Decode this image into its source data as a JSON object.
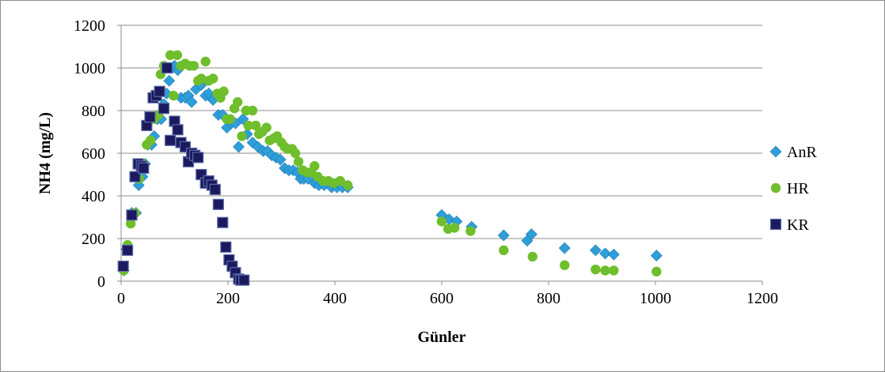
{
  "chart_data": {
    "type": "scatter",
    "title": "",
    "xlabel": "Günler",
    "ylabel": "NH4 (mg/L)",
    "xlim": [
      0,
      1200
    ],
    "ylim": [
      0,
      1200
    ],
    "x_ticks": [
      0,
      200,
      400,
      600,
      800,
      1000,
      1200
    ],
    "y_ticks": [
      0,
      200,
      400,
      600,
      800,
      1000,
      1200
    ],
    "grid": "horizontal",
    "legend_position": "right",
    "series": [
      {
        "name": "AnR",
        "marker": "diamond",
        "color": "#2e9fd9",
        "points": [
          [
            5,
            50
          ],
          [
            10,
            150
          ],
          [
            20,
            320
          ],
          [
            28,
            320
          ],
          [
            33,
            450
          ],
          [
            40,
            490
          ],
          [
            45,
            550
          ],
          [
            50,
            640
          ],
          [
            57,
            640
          ],
          [
            62,
            680
          ],
          [
            68,
            760
          ],
          [
            75,
            760
          ],
          [
            80,
            830
          ],
          [
            85,
            880
          ],
          [
            90,
            940
          ],
          [
            96,
            1000
          ],
          [
            100,
            1010
          ],
          [
            106,
            990
          ],
          [
            112,
            860
          ],
          [
            120,
            860
          ],
          [
            126,
            870
          ],
          [
            132,
            840
          ],
          [
            140,
            900
          ],
          [
            150,
            920
          ],
          [
            158,
            870
          ],
          [
            164,
            880
          ],
          [
            172,
            850
          ],
          [
            182,
            780
          ],
          [
            190,
            780
          ],
          [
            198,
            720
          ],
          [
            206,
            740
          ],
          [
            214,
            740
          ],
          [
            220,
            630
          ],
          [
            228,
            760
          ],
          [
            236,
            690
          ],
          [
            246,
            650
          ],
          [
            256,
            630
          ],
          [
            266,
            610
          ],
          [
            274,
            610
          ],
          [
            282,
            590
          ],
          [
            290,
            580
          ],
          [
            298,
            570
          ],
          [
            306,
            530
          ],
          [
            314,
            520
          ],
          [
            322,
            520
          ],
          [
            330,
            510
          ],
          [
            336,
            480
          ],
          [
            342,
            480
          ],
          [
            350,
            480
          ],
          [
            362,
            460
          ],
          [
            370,
            450
          ],
          [
            380,
            450
          ],
          [
            394,
            440
          ],
          [
            404,
            440
          ],
          [
            414,
            440
          ],
          [
            424,
            440
          ],
          [
            600,
            310
          ],
          [
            614,
            290
          ],
          [
            628,
            280
          ],
          [
            656,
            255
          ],
          [
            716,
            215
          ],
          [
            760,
            190
          ],
          [
            768,
            220
          ],
          [
            830,
            155
          ],
          [
            888,
            145
          ],
          [
            906,
            130
          ],
          [
            922,
            125
          ],
          [
            1002,
            120
          ]
        ]
      },
      {
        "name": "HR",
        "marker": "circle",
        "color": "#6fbe2c",
        "points": [
          [
            5,
            50
          ],
          [
            12,
            170
          ],
          [
            18,
            270
          ],
          [
            26,
            320
          ],
          [
            34,
            480
          ],
          [
            42,
            550
          ],
          [
            48,
            640
          ],
          [
            55,
            660
          ],
          [
            62,
            760
          ],
          [
            70,
            780
          ],
          [
            74,
            970
          ],
          [
            80,
            1010
          ],
          [
            86,
            1000
          ],
          [
            92,
            1060
          ],
          [
            98,
            870
          ],
          [
            105,
            1060
          ],
          [
            112,
            1010
          ],
          [
            120,
            1020
          ],
          [
            128,
            1010
          ],
          [
            136,
            1010
          ],
          [
            144,
            940
          ],
          [
            150,
            950
          ],
          [
            158,
            1030
          ],
          [
            164,
            940
          ],
          [
            172,
            950
          ],
          [
            180,
            880
          ],
          [
            186,
            860
          ],
          [
            192,
            890
          ],
          [
            198,
            760
          ],
          [
            204,
            760
          ],
          [
            212,
            810
          ],
          [
            218,
            840
          ],
          [
            226,
            680
          ],
          [
            234,
            800
          ],
          [
            238,
            730
          ],
          [
            246,
            800
          ],
          [
            252,
            730
          ],
          [
            258,
            690
          ],
          [
            264,
            700
          ],
          [
            272,
            720
          ],
          [
            278,
            660
          ],
          [
            286,
            670
          ],
          [
            292,
            680
          ],
          [
            300,
            650
          ],
          [
            306,
            630
          ],
          [
            312,
            620
          ],
          [
            320,
            620
          ],
          [
            326,
            600
          ],
          [
            332,
            560
          ],
          [
            340,
            520
          ],
          [
            348,
            510
          ],
          [
            356,
            510
          ],
          [
            362,
            540
          ],
          [
            368,
            490
          ],
          [
            378,
            470
          ],
          [
            388,
            470
          ],
          [
            398,
            460
          ],
          [
            410,
            470
          ],
          [
            424,
            450
          ],
          [
            600,
            280
          ],
          [
            612,
            245
          ],
          [
            624,
            250
          ],
          [
            654,
            235
          ],
          [
            716,
            145
          ],
          [
            770,
            115
          ],
          [
            830,
            75
          ],
          [
            888,
            55
          ],
          [
            906,
            50
          ],
          [
            922,
            50
          ],
          [
            1002,
            45
          ]
        ]
      },
      {
        "name": "KR",
        "marker": "square",
        "color": "#1b1a5e",
        "points": [
          [
            4,
            70
          ],
          [
            12,
            145
          ],
          [
            20,
            310
          ],
          [
            26,
            490
          ],
          [
            32,
            550
          ],
          [
            38,
            540
          ],
          [
            42,
            530
          ],
          [
            48,
            730
          ],
          [
            54,
            770
          ],
          [
            60,
            860
          ],
          [
            66,
            870
          ],
          [
            72,
            890
          ],
          [
            80,
            810
          ],
          [
            86,
            1000
          ],
          [
            92,
            660
          ],
          [
            100,
            750
          ],
          [
            106,
            710
          ],
          [
            112,
            650
          ],
          [
            120,
            630
          ],
          [
            126,
            560
          ],
          [
            132,
            600
          ],
          [
            138,
            590
          ],
          [
            144,
            580
          ],
          [
            150,
            500
          ],
          [
            158,
            460
          ],
          [
            164,
            470
          ],
          [
            170,
            450
          ],
          [
            176,
            430
          ],
          [
            182,
            360
          ],
          [
            190,
            275
          ],
          [
            196,
            160
          ],
          [
            202,
            100
          ],
          [
            208,
            70
          ],
          [
            214,
            40
          ],
          [
            220,
            10
          ],
          [
            224,
            5
          ],
          [
            230,
            5
          ]
        ]
      }
    ]
  }
}
